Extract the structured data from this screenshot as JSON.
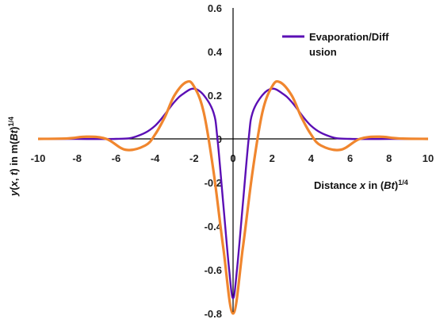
{
  "chart_data": {
    "type": "line",
    "xlabel": "Distance x in (Bt)^1/4",
    "ylabel": "y(x, t) in m(Bt)^1/4",
    "xlim": [
      -10,
      10
    ],
    "ylim": [
      -0.8,
      0.6
    ],
    "x_ticks": [
      "-10",
      "-8",
      "-6",
      "-4",
      "-2",
      "0",
      "2",
      "4",
      "6",
      "8",
      "10"
    ],
    "y_ticks": [
      "0.6",
      "0.4",
      "0.2",
      "0",
      "-0.2",
      "-0.4",
      "-0.6",
      "-0.8"
    ],
    "grid": false,
    "legend_position": "top-right",
    "series": [
      {
        "name": "Evaporation/Diff usion",
        "color": "#5b0fb5",
        "x": [
          -10,
          -8,
          -6,
          -5,
          -4,
          -3,
          -2.5,
          -2,
          -1.5,
          -1,
          -0.8,
          -0.5,
          -0.2,
          0,
          0.2,
          0.5,
          0.8,
          1,
          1.5,
          2,
          2.5,
          3,
          4,
          5,
          6,
          8,
          10
        ],
        "y": [
          0,
          0,
          0,
          0.01,
          0.06,
          0.17,
          0.21,
          0.23,
          0.2,
          0.12,
          0.0,
          -0.3,
          -0.6,
          -0.73,
          -0.6,
          -0.3,
          0.0,
          0.12,
          0.2,
          0.23,
          0.21,
          0.17,
          0.06,
          0.01,
          0,
          0,
          0
        ]
      },
      {
        "name": "",
        "color": "#f0862e",
        "x": [
          -10,
          -8.5,
          -7.5,
          -6.5,
          -5.5,
          -4.5,
          -4,
          -3.5,
          -3,
          -2.4,
          -2,
          -1.5,
          -1,
          -0.5,
          0,
          0.5,
          1,
          1.5,
          2,
          2.4,
          3,
          3.5,
          4,
          4.5,
          5.5,
          6.5,
          7.5,
          8.5,
          10
        ],
        "y": [
          0,
          0.002,
          0.01,
          0.0,
          -0.05,
          -0.03,
          0.02,
          0.1,
          0.2,
          0.26,
          0.24,
          0.12,
          -0.15,
          -0.5,
          -0.8,
          -0.5,
          -0.15,
          0.12,
          0.24,
          0.26,
          0.2,
          0.1,
          0.02,
          -0.03,
          -0.05,
          0.0,
          0.01,
          0.002,
          0
        ]
      }
    ]
  }
}
